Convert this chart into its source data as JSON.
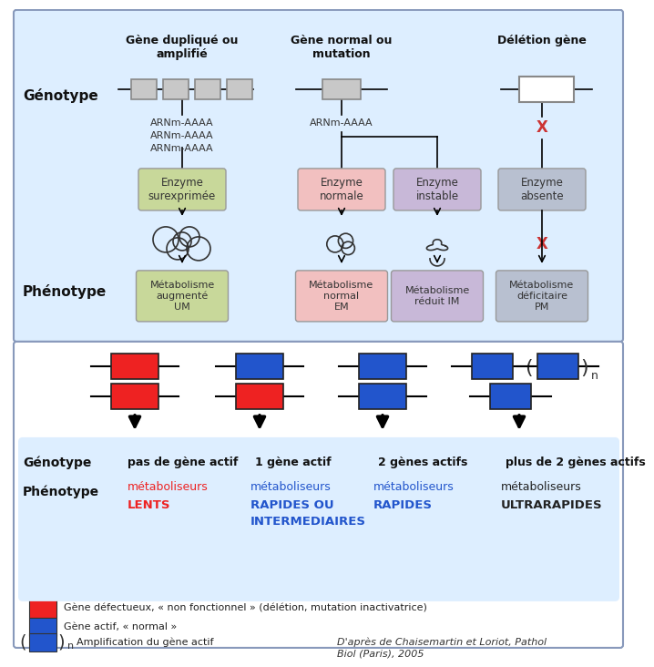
{
  "bg_color": "#ffffff",
  "top_panel_bg": "#ddeeff",
  "bottom_box_bg": "#ddeeff",
  "enzyme_colors": {
    "surexprimee": "#c8d89a",
    "normale": "#f2c0c0",
    "instable": "#c8b8d8",
    "absente": "#b8c0d0"
  },
  "metabolisme_colors": {
    "augmente": "#c8d89a",
    "normal": "#f2c0c0",
    "reduit": "#c8b8d8",
    "deficitaire": "#b8c0d0"
  },
  "gene_red": "#ee2222",
  "gene_blue": "#2255cc",
  "col_headers": [
    "Gène dupliqué ou\namplifié",
    "Gène normal ou\nmutation",
    "Délétion gène"
  ],
  "arnm_col1": "ARNm-AAAA\nARNm-AAAA\nARNm-AAAA",
  "arnm_col2": "ARNm-AAAA",
  "enzyme_labels": [
    "Enzyme\nsurexprimée",
    "Enzyme\nnormale",
    "Enzyme\ninstable",
    "Enzyme\nabsente"
  ],
  "metabolisme_labels": [
    "Métabolisme\naugmenté\nUM",
    "Métabolisme\nnormal\nEM",
    "Métabolisme\nréduit IM",
    "Métabolisme\ndéficitaire\nPM"
  ],
  "bottom_genotype_labels": [
    "pas de gène actif",
    "1 gène actif",
    "2 gènes actifs",
    "plus de 2 gènes actifs"
  ],
  "bottom_phenotype_line1": [
    "métaboliseurs",
    "métaboliseurs",
    "métaboliseurs",
    "métaboliseurs"
  ],
  "bottom_phenotype_line2": [
    "LENTS",
    "RAPIDES OU\nINTERMEDIAIRES",
    "RAPIDES",
    "ULTRARAPIDES"
  ],
  "bottom_phenotype_colors": [
    "#ee2222",
    "#2255cc",
    "#2255cc",
    "#222222"
  ],
  "legend_red_label": "Gène défectueux, « non fonctionnel » (délétion, mutation inactivatrice)",
  "legend_blue_label": "Gène actif, « normal »",
  "legend_ampl_label": "Amplification du gène actif",
  "legend_cite": "D'après de Chaisemartin et Loriot, Pathol\nBiol (Paris), 2005"
}
